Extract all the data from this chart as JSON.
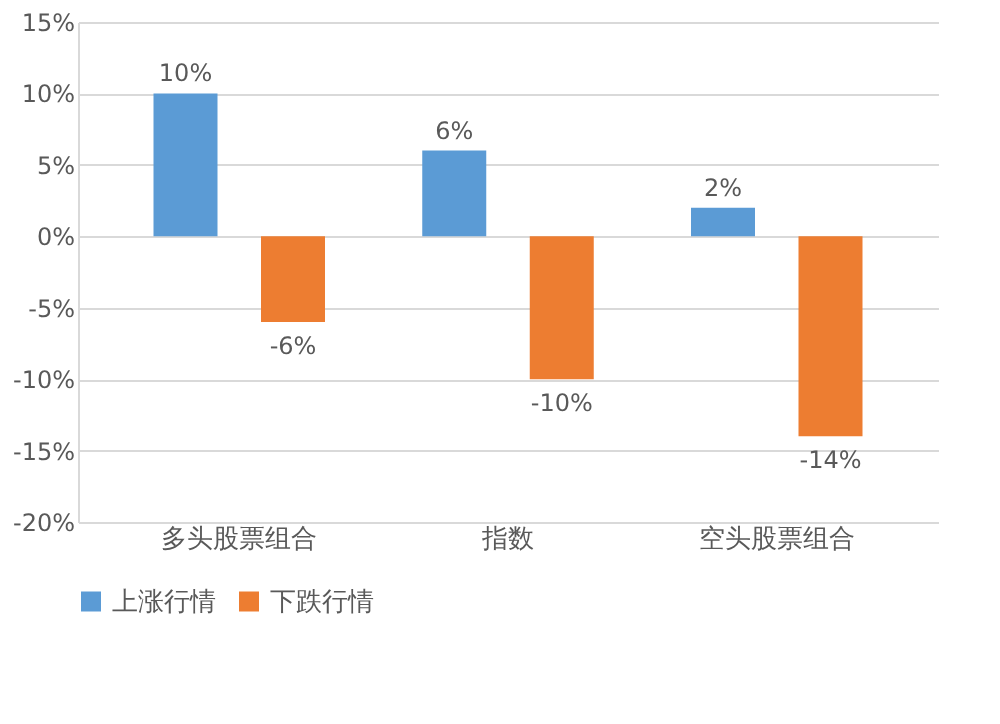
{
  "chart_data": {
    "type": "bar",
    "categories": [
      "多头股票组合",
      "指数",
      "空头股票组合"
    ],
    "series": [
      {
        "name": "上涨行情",
        "color": "#5b9bd5",
        "values": [
          10,
          6,
          2
        ],
        "value_labels": [
          "10%",
          "6%",
          "2%"
        ]
      },
      {
        "name": "下跌行情",
        "color": "#ed7d31",
        "values": [
          -6,
          -10,
          -14
        ],
        "value_labels": [
          "-6%",
          "-10%",
          "-14%"
        ]
      }
    ],
    "ylim": [
      -20,
      15
    ],
    "yticks": [
      {
        "value": -20,
        "label": "-20%"
      },
      {
        "value": -15,
        "label": "-15%"
      },
      {
        "value": -10,
        "label": "-10%"
      },
      {
        "value": -5,
        "label": "-5%"
      },
      {
        "value": 0,
        "label": "0%"
      },
      {
        "value": 5,
        "label": "5%"
      },
      {
        "value": 10,
        "label": "10%"
      },
      {
        "value": 15,
        "label": "15%"
      }
    ],
    "grid": "y",
    "legend": "bottom"
  }
}
